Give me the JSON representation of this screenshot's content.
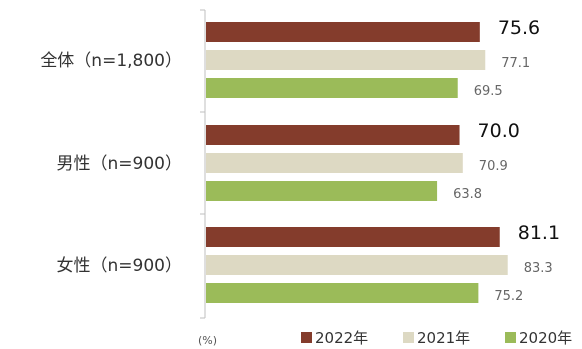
{
  "chart_data": {
    "type": "bar",
    "orientation": "horizontal",
    "categories": [
      "全体（n=1,800）",
      "男性（n=900）",
      "女性（n=900）"
    ],
    "series": [
      {
        "name": "2022年",
        "values": [
          75.6,
          70.0,
          81.1
        ],
        "color": "#843C2C",
        "label_style": "emphasized"
      },
      {
        "name": "2021年",
        "values": [
          77.1,
          70.9,
          83.3
        ],
        "color": "#DDD9C3",
        "label_style": "normal"
      },
      {
        "name": "2020年",
        "values": [
          69.5,
          63.8,
          75.2
        ],
        "color": "#9BBB59",
        "label_style": "normal"
      }
    ],
    "value_labels": [
      [
        "75.6",
        "70.0",
        "81.1"
      ],
      [
        "77.1",
        "70.9",
        "83.3"
      ],
      [
        "69.5",
        "63.8",
        "75.2"
      ]
    ],
    "unit_label": "(%)",
    "xlim": [
      0,
      100
    ],
    "grid": false,
    "legend_position": "bottom-right"
  }
}
